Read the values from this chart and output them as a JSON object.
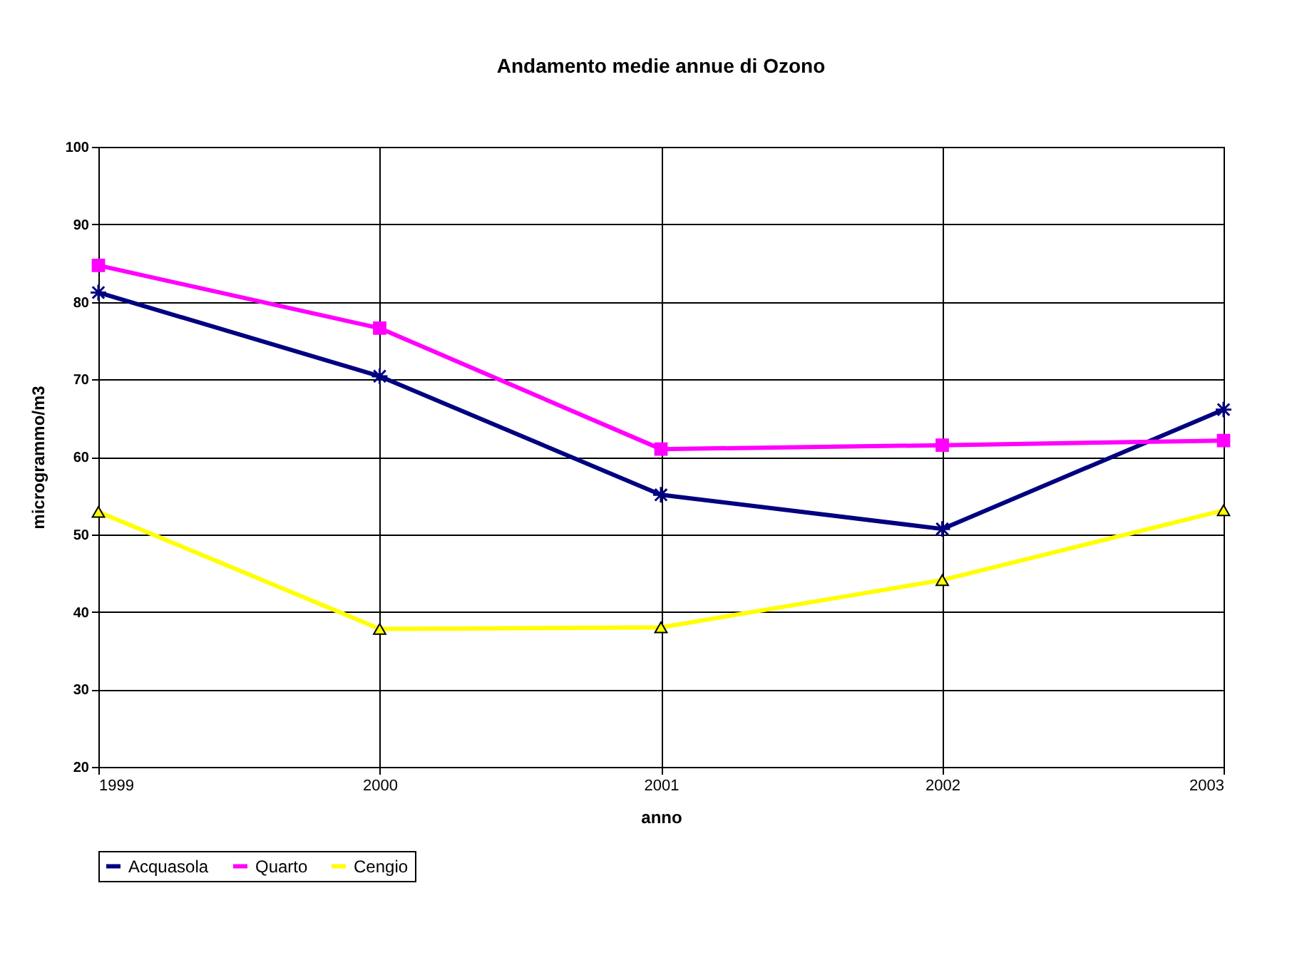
{
  "chart_data": {
    "type": "line",
    "title": "Andamento medie annue di Ozono",
    "xlabel": "anno",
    "ylabel": "microgrammo/m3",
    "x": [
      1999,
      2000,
      2001,
      2002,
      2003
    ],
    "xlim": [
      1999,
      2003
    ],
    "xticks": [
      1999,
      2000,
      2001,
      2002,
      2003
    ],
    "ylim": [
      20,
      100
    ],
    "yticks": [
      20,
      30,
      40,
      50,
      60,
      70,
      80,
      90,
      100
    ],
    "grid": true,
    "legend": "bottom",
    "series": [
      {
        "name": "Acquasola",
        "color": "#000080",
        "marker": "cross",
        "values": [
          81.2,
          70.4,
          55.1,
          50.7,
          66.1
        ]
      },
      {
        "name": "Quarto",
        "color": "#ff00ff",
        "marker": "square",
        "values": [
          84.7,
          76.6,
          61,
          61.5,
          62.1
        ]
      },
      {
        "name": "Cengio",
        "color": "#ffff00",
        "marker": "triangle",
        "values": [
          52.9,
          37.8,
          38,
          44.1,
          53.1
        ]
      }
    ]
  }
}
